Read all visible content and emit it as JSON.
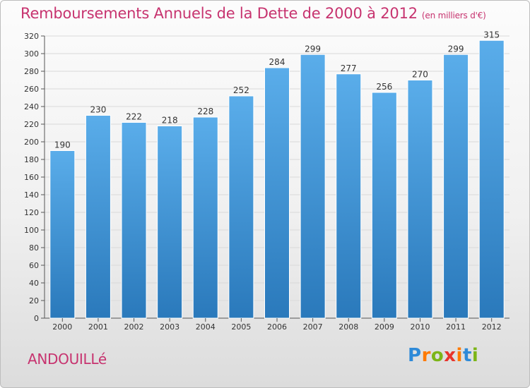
{
  "title": "Remboursements Annuels de la Dette de 2000 à 2012",
  "title_unit": "(en milliers d'€)",
  "place": "ANDOUILLé",
  "logo": {
    "letters": [
      "P",
      "r",
      "o",
      "x",
      "i",
      "t",
      "i"
    ],
    "colors": [
      "#2e8ad8",
      "#ff7a00",
      "#7cb518",
      "#e8342c",
      "#ff7a00",
      "#2e8ad8",
      "#7cb518"
    ]
  },
  "chart_data": {
    "type": "bar",
    "categories": [
      "2000",
      "2001",
      "2002",
      "2003",
      "2004",
      "2005",
      "2006",
      "2007",
      "2008",
      "2009",
      "2010",
      "2011",
      "2012"
    ],
    "values": [
      190,
      230,
      222,
      218,
      228,
      252,
      284,
      299,
      277,
      256,
      270,
      299,
      315
    ],
    "ylim": [
      0,
      320
    ],
    "yticks": [
      0,
      20,
      40,
      60,
      80,
      100,
      120,
      140,
      160,
      180,
      200,
      220,
      240,
      260,
      280,
      300,
      320
    ],
    "grid": true,
    "bar_color_top": "#5aadea",
    "bar_color_bottom": "#2a79bb"
  }
}
